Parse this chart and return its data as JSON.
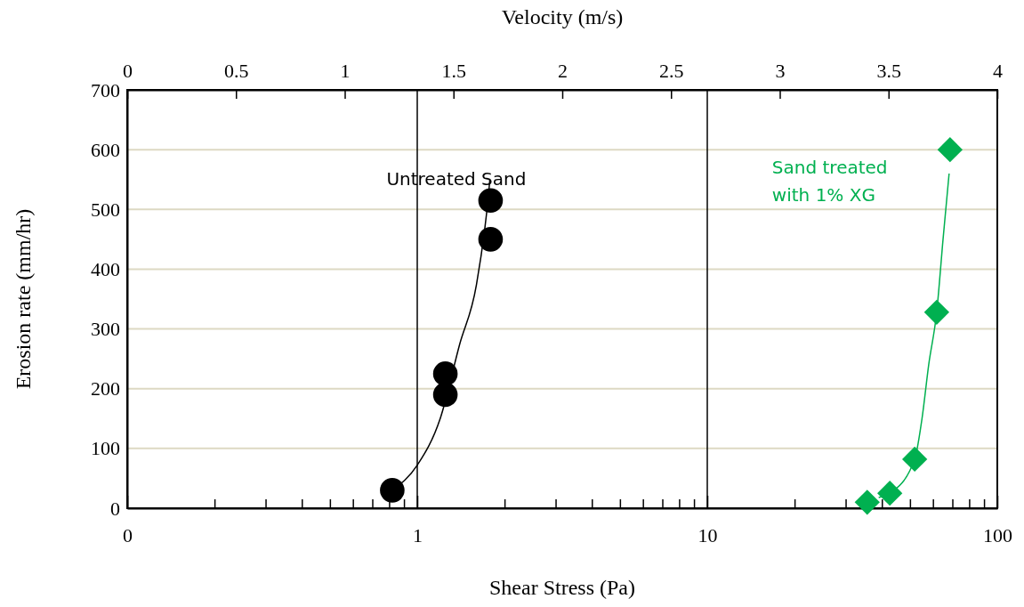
{
  "chart_data": {
    "type": "scatter",
    "xlabel": "Shear Stress (Pa)",
    "x2label": "Velocity (m/s)",
    "ylabel": "Erosion rate (mm/hr)",
    "log": "x",
    "xlim": [
      0.1,
      100
    ],
    "xticks": [
      {
        "value": 0.1,
        "label": "0"
      },
      {
        "value": 0.2,
        "label": null
      },
      {
        "value": 0.3,
        "label": null
      },
      {
        "value": 0.4,
        "label": null
      },
      {
        "value": 0.5,
        "label": null
      },
      {
        "value": 0.6,
        "label": null
      },
      {
        "value": 0.7,
        "label": null
      },
      {
        "value": 0.8,
        "label": null
      },
      {
        "value": 0.9,
        "label": null
      },
      1,
      {
        "value": 2,
        "label": null
      },
      {
        "value": 3,
        "label": null
      },
      {
        "value": 4,
        "label": null
      },
      {
        "value": 5,
        "label": null
      },
      {
        "value": 6,
        "label": null
      },
      {
        "value": 7,
        "label": null
      },
      {
        "value": 8,
        "label": null
      },
      {
        "value": 9,
        "label": null
      },
      10,
      {
        "value": 20,
        "label": null
      },
      {
        "value": 30,
        "label": null
      },
      {
        "value": 40,
        "label": null
      },
      {
        "value": 50,
        "label": null
      },
      {
        "value": 60,
        "label": null
      },
      {
        "value": 70,
        "label": null
      },
      {
        "value": 80,
        "label": null
      },
      {
        "value": 90,
        "label": null
      },
      100
    ],
    "x2lim": [
      0,
      4
    ],
    "x2ticks": [
      0,
      0.5,
      1,
      1.5,
      2,
      2.5,
      3,
      3.5,
      4
    ],
    "ylim": [
      0,
      700
    ],
    "yticks": [
      0,
      100,
      200,
      300,
      400,
      500,
      600,
      700
    ],
    "grid": true,
    "series": [
      {
        "name": "Untreated Sand",
        "marker": "circle",
        "color": "#000000",
        "x": [
          0.82,
          1.25,
          1.25,
          1.79,
          1.79
        ],
        "values": [
          30,
          190,
          225,
          450,
          515
        ]
      },
      {
        "type": "line",
        "marker": "none",
        "color": "#000000",
        "x": [
          0.82,
          1.0,
          1.2,
          1.4,
          1.6,
          1.75,
          1.78
        ],
        "values": [
          30,
          72,
          150,
          274,
          374,
          512,
          550
        ]
      },
      {
        "name": "Sand treated with 1% XG",
        "marker": "diamond",
        "color": "#00b050",
        "x": [
          35.6,
          42.6,
          51.9,
          61.8,
          68.7
        ],
        "values": [
          10,
          25,
          82,
          328,
          600
        ]
      },
      {
        "type": "line",
        "marker": "none",
        "color": "#00b050",
        "x": [
          39,
          42.6,
          51.9,
          55,
          58,
          61.8,
          65,
          68.2
        ],
        "values": [
          18,
          25,
          82,
          150,
          240,
          328,
          450,
          560
        ]
      }
    ]
  }
}
